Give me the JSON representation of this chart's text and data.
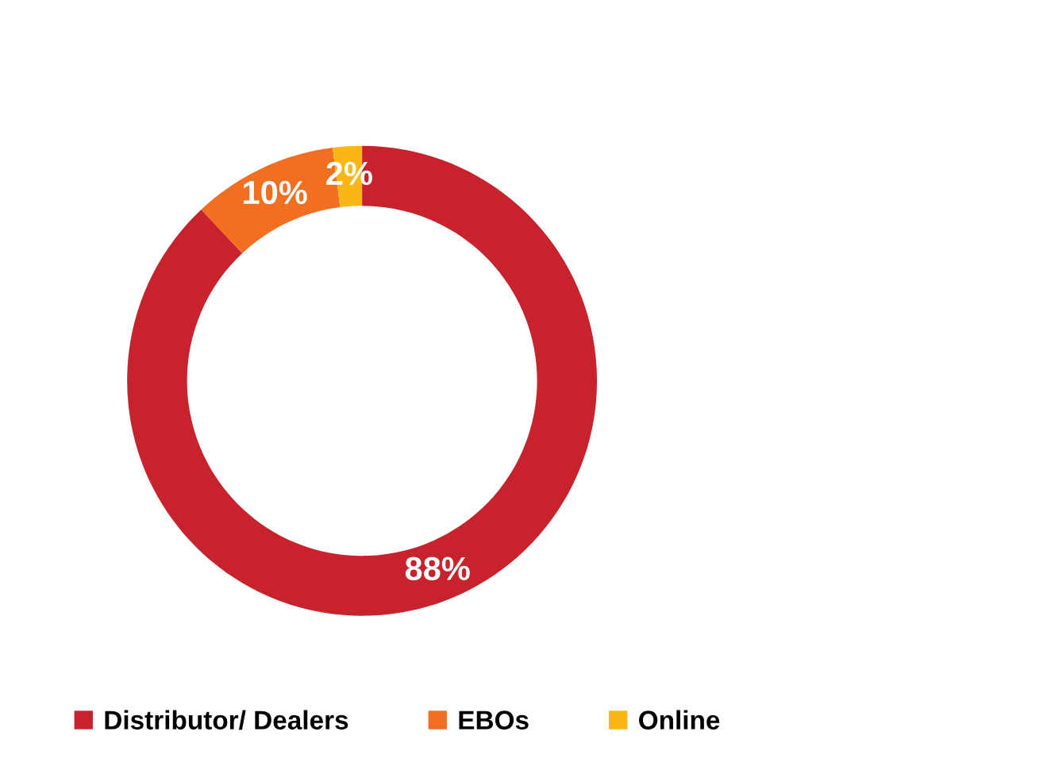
{
  "chart_data": {
    "type": "donut",
    "categories": [
      "Distributor/ Dealers",
      "EBOs",
      "Online"
    ],
    "values": [
      88,
      10,
      2
    ],
    "colors": [
      "#c8232c",
      "#f26f21",
      "#fbb516"
    ],
    "value_labels": [
      "88%",
      "10%",
      "2%"
    ],
    "legend": "bottom"
  }
}
